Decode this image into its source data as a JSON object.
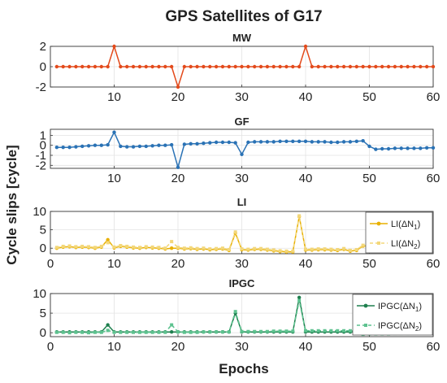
{
  "title": "GPS Satellites of G17",
  "ylabel": "Cycle slips [cycle]",
  "xlabel": "Epochs",
  "colors": {
    "mw": "#e34a1b",
    "gf": "#2a72b5",
    "li1": "#e8b000",
    "li2": "#f3d77a",
    "ipgc1": "#1e7f4e",
    "ipgc2": "#5dc28f",
    "grid": "#e3e3e3",
    "axis": "#333333"
  },
  "chart_data": [
    {
      "id": "mw",
      "type": "line",
      "title": "MW",
      "xlim": [
        0,
        60
      ],
      "ylim": [
        -2,
        2
      ],
      "xticks": [
        "10",
        "20",
        "30",
        "40",
        "50",
        "60"
      ],
      "yticks": [
        "2",
        "0",
        "-2"
      ],
      "grid": true,
      "series": [
        {
          "color_key": "mw",
          "x": [
            1,
            2,
            3,
            4,
            5,
            6,
            7,
            8,
            9,
            10,
            11,
            12,
            13,
            14,
            15,
            16,
            17,
            18,
            19,
            20,
            21,
            22,
            23,
            24,
            25,
            26,
            27,
            28,
            29,
            30,
            31,
            32,
            33,
            34,
            35,
            36,
            37,
            38,
            39,
            40,
            41,
            42,
            43,
            44,
            45,
            46,
            47,
            48,
            49,
            50,
            51,
            52,
            53,
            54,
            55,
            56,
            57,
            58,
            59,
            60
          ],
          "y": [
            0,
            0,
            0,
            0,
            0,
            0,
            0,
            0,
            0,
            2,
            0,
            0,
            0,
            0,
            0,
            0,
            0,
            0,
            0,
            -2,
            0,
            0,
            0,
            0,
            0,
            0,
            0,
            0,
            0,
            0,
            0,
            0,
            0,
            0,
            0,
            0,
            0,
            0,
            0,
            2,
            0,
            0,
            0,
            0,
            0,
            0,
            0,
            0,
            0,
            0,
            0,
            0,
            0,
            0,
            0,
            0,
            0,
            0,
            0,
            0
          ]
        }
      ]
    },
    {
      "id": "gf",
      "type": "line",
      "title": "GF",
      "xlim": [
        0,
        60
      ],
      "ylim": [
        -2.3,
        1.6
      ],
      "xticks": [
        "10",
        "20",
        "30",
        "40",
        "50",
        "60"
      ],
      "yticks": [
        "1",
        "0",
        "-1",
        "-2"
      ],
      "grid": true,
      "series": [
        {
          "color_key": "gf",
          "x": [
            1,
            2,
            3,
            4,
            5,
            6,
            7,
            8,
            9,
            10,
            11,
            12,
            13,
            14,
            15,
            16,
            17,
            18,
            19,
            20,
            21,
            22,
            23,
            24,
            25,
            26,
            27,
            28,
            29,
            30,
            31,
            32,
            33,
            34,
            35,
            36,
            37,
            38,
            39,
            40,
            41,
            42,
            43,
            44,
            45,
            46,
            47,
            48,
            49,
            50,
            51,
            52,
            53,
            54,
            55,
            56,
            57,
            58,
            59,
            60
          ],
          "y": [
            -0.2,
            -0.2,
            -0.2,
            -0.15,
            -0.1,
            -0.05,
            0,
            0,
            0.05,
            1.3,
            -0.1,
            -0.15,
            -0.15,
            -0.1,
            -0.1,
            -0.05,
            0,
            0,
            0.05,
            -2.2,
            0.1,
            0.15,
            0.15,
            0.2,
            0.25,
            0.3,
            0.3,
            0.3,
            0.25,
            -0.9,
            0.3,
            0.35,
            0.35,
            0.35,
            0.35,
            0.4,
            0.4,
            0.4,
            0.4,
            0.4,
            0.35,
            0.35,
            0.35,
            0.3,
            0.3,
            0.35,
            0.35,
            0.4,
            0.45,
            -0.1,
            -0.4,
            -0.35,
            -0.35,
            -0.3,
            -0.3,
            -0.3,
            -0.3,
            -0.3,
            -0.25,
            -0.25
          ]
        }
      ]
    },
    {
      "id": "li",
      "type": "line",
      "title": "LI",
      "xlim": [
        0,
        60
      ],
      "ylim": [
        -1.5,
        10
      ],
      "xticks": [
        "0",
        "10",
        "20",
        "30",
        "40",
        "50",
        "60"
      ],
      "yticks": [
        "10",
        "5",
        "0"
      ],
      "grid": true,
      "legend": "top-right",
      "series": [
        {
          "name": "LI(ΔN1)",
          "legend_main": "LI(ΔN",
          "legend_sub": "1",
          "legend_end": ")",
          "style": "solid",
          "marker": "circle",
          "color_key": "li1",
          "x": [
            1,
            2,
            3,
            4,
            5,
            6,
            7,
            8,
            9,
            10,
            11,
            12,
            13,
            14,
            15,
            16,
            17,
            18,
            19,
            20,
            21,
            22,
            23,
            24,
            25,
            26,
            27,
            28,
            29,
            30,
            31,
            32,
            33,
            34,
            35,
            36,
            37,
            38,
            39,
            40,
            41,
            42,
            43,
            44,
            45,
            46,
            47,
            48,
            49,
            50,
            51,
            52,
            53,
            54,
            55,
            56,
            57,
            58,
            59
          ],
          "y": [
            0,
            0.3,
            0.4,
            0.2,
            0.3,
            0.2,
            0,
            0.3,
            2.3,
            0.1,
            0.5,
            0.3,
            0.1,
            0,
            0.2,
            0.1,
            0,
            -0.2,
            0,
            0,
            -0.2,
            -0.1,
            -0.3,
            -0.2,
            -0.4,
            -0.3,
            -0.2,
            -0.6,
            4.1,
            -0.4,
            -0.5,
            -0.3,
            -0.3,
            -0.5,
            -0.7,
            -0.9,
            -1,
            -1,
            8.6,
            -0.5,
            -0.5,
            -0.4,
            -0.4,
            -0.5,
            -0.6,
            -0.3,
            -0.8,
            -0.6,
            0.6,
            0.5,
            0.6,
            0.7,
            0.6,
            0.5,
            0.8,
            0.7,
            0.8,
            1,
            1
          ]
        },
        {
          "name": "LI(ΔN2)",
          "legend_main": "LI(ΔN",
          "legend_sub": "2",
          "legend_end": ")",
          "style": "dashed",
          "marker": "square",
          "color_key": "li2",
          "x": [
            1,
            2,
            3,
            4,
            5,
            6,
            7,
            8,
            9,
            10,
            11,
            12,
            13,
            14,
            15,
            16,
            17,
            18,
            19,
            20,
            21,
            22,
            23,
            24,
            25,
            26,
            27,
            28,
            29,
            30,
            31,
            32,
            33,
            34,
            35,
            36,
            37,
            38,
            39,
            40,
            41,
            42,
            43,
            44,
            45,
            46,
            47,
            48,
            49,
            50,
            51,
            52,
            53,
            54,
            55,
            56,
            57,
            58,
            59
          ],
          "y": [
            0.2,
            0.5,
            0.6,
            0.4,
            0.5,
            0.4,
            0.2,
            0.5,
            1.5,
            0.3,
            0.7,
            0.5,
            0.3,
            0.2,
            0.4,
            0.3,
            0.2,
            0,
            1.8,
            0.2,
            0,
            0.1,
            -0.1,
            0,
            -0.2,
            -0.1,
            0,
            -0.4,
            4.4,
            -0.2,
            -0.3,
            -0.1,
            -0.1,
            -0.3,
            -0.5,
            -0.7,
            -0.8,
            -0.8,
            8.8,
            -0.3,
            -0.3,
            -0.2,
            -0.2,
            -0.3,
            -0.4,
            -0.1,
            -0.6,
            -0.4,
            0.8,
            0.7,
            0.8,
            0.9,
            0.8,
            0.7,
            1,
            0.9,
            1,
            1.2,
            1.2
          ]
        }
      ]
    },
    {
      "id": "ipgc",
      "type": "line",
      "title": "IPGC",
      "xlim": [
        0,
        60
      ],
      "ylim": [
        -1,
        10
      ],
      "xticks": [
        "0",
        "10",
        "20",
        "30",
        "40",
        "50",
        "60"
      ],
      "yticks": [
        "10",
        "5",
        "0"
      ],
      "grid": true,
      "legend": "top-right",
      "series": [
        {
          "name": "IPGC(ΔN1)",
          "legend_main": "IPGC(ΔN",
          "legend_sub": "1",
          "legend_end": ")",
          "style": "solid",
          "marker": "circle",
          "color_key": "ipgc1",
          "x": [
            1,
            2,
            3,
            4,
            5,
            6,
            7,
            8,
            9,
            10,
            11,
            12,
            13,
            14,
            15,
            16,
            17,
            18,
            19,
            20,
            21,
            22,
            23,
            24,
            25,
            26,
            27,
            28,
            29,
            30,
            31,
            32,
            33,
            34,
            35,
            36,
            37,
            38,
            39,
            40,
            41,
            42,
            43,
            44,
            45,
            46,
            47,
            48,
            49,
            50,
            51,
            52,
            53,
            54,
            55,
            56,
            57,
            58,
            59
          ],
          "y": [
            0.2,
            0.2,
            0.2,
            0.2,
            0.2,
            0.2,
            0.2,
            0.2,
            2,
            0.2,
            0.2,
            0.2,
            0.2,
            0.2,
            0.2,
            0.2,
            0.2,
            0.2,
            0.2,
            0.2,
            0.2,
            0.2,
            0.2,
            0.2,
            0.2,
            0.2,
            0.2,
            0.2,
            5,
            0.2,
            0.2,
            0.2,
            0.2,
            0.2,
            0.2,
            0.2,
            0.2,
            0.2,
            9,
            0.2,
            0.2,
            0.2,
            0.2,
            0.2,
            0.2,
            0.2,
            0.2,
            0.2,
            0.2,
            0.2,
            0.2,
            0.2,
            0.2,
            0.2,
            0.2,
            0.2,
            0.2,
            0.2,
            0.2
          ]
        },
        {
          "name": "IPGC(ΔN2)",
          "legend_main": "IPGC(ΔN",
          "legend_sub": "2",
          "legend_end": ")",
          "style": "dashed",
          "marker": "square",
          "color_key": "ipgc2",
          "x": [
            1,
            2,
            3,
            4,
            5,
            6,
            7,
            8,
            9,
            10,
            11,
            12,
            13,
            14,
            15,
            16,
            17,
            18,
            19,
            20,
            21,
            22,
            23,
            24,
            25,
            26,
            27,
            28,
            29,
            30,
            31,
            32,
            33,
            34,
            35,
            36,
            37,
            38,
            39,
            40,
            41,
            42,
            43,
            44,
            45,
            46,
            47,
            48,
            49,
            50,
            51,
            52,
            53,
            54,
            55,
            56,
            57,
            58,
            59
          ],
          "y": [
            0.1,
            0.1,
            0,
            0.1,
            0.1,
            0,
            0.1,
            0.1,
            0.6,
            0.1,
            0.1,
            0.1,
            0.1,
            0.1,
            0.1,
            0.1,
            0.1,
            0.1,
            2,
            0.2,
            0.1,
            0.1,
            0.1,
            0.2,
            0.2,
            0.2,
            0.2,
            0.2,
            5.4,
            0.3,
            0.3,
            0.3,
            0.3,
            0.3,
            0.4,
            0.4,
            0.4,
            0.4,
            8.2,
            0.5,
            0.5,
            0.5,
            0.5,
            0.5,
            0.5,
            0.5,
            0.5,
            0.5,
            -0.4,
            -0.3,
            -0.3,
            -0.3,
            -0.3,
            -0.2,
            -0.2,
            -0.2,
            -0.1,
            -0.1,
            0
          ]
        }
      ]
    }
  ]
}
